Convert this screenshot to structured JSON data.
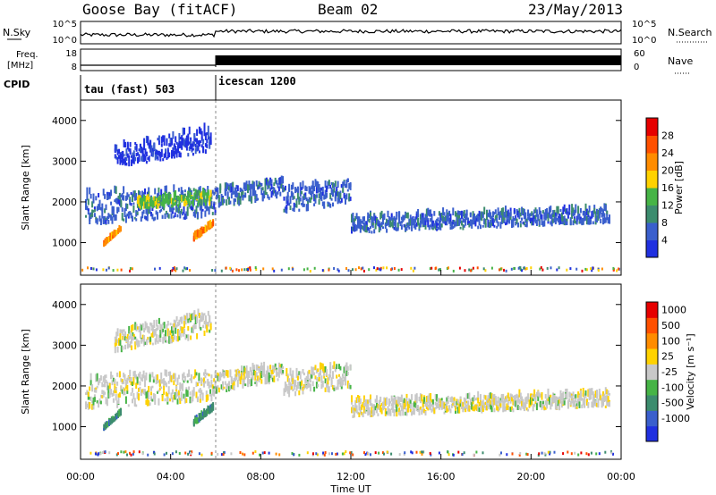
{
  "header": {
    "station": "Goose Bay (fitACF)",
    "beam": "Beam 02",
    "date": "23/May/2013"
  },
  "left_labels": {
    "nsky": "N.Sky",
    "freq_line1": "Freq.",
    "freq_line2": "[MHz]",
    "cpid": "CPID"
  },
  "right_labels": {
    "nsearch": "N.Search",
    "nave": "Nave"
  },
  "noise_axis": {
    "left_ticks": [
      "10^5",
      "10^0"
    ],
    "right_ticks": [
      "10^5",
      "10^0"
    ]
  },
  "freq_axis": {
    "left_ticks": [
      "18",
      "8"
    ],
    "right_ticks": [
      "60",
      "0"
    ]
  },
  "cpid": [
    {
      "label": "tau (fast) 503",
      "start_hour": 0,
      "end_hour": 6
    },
    {
      "label": "icescan 1200",
      "start_hour": 6,
      "end_hour": 24
    }
  ],
  "chart_data": [
    {
      "type": "heatmap",
      "panel": "power",
      "ylabel": "Slant Range [km]",
      "xlabel": "Time UT",
      "x_range_hours": [
        0,
        24
      ],
      "ylim": [
        200,
        4500
      ],
      "x_ticks": [
        "00:00",
        "04:00",
        "08:00",
        "12:00",
        "16:00",
        "20:00",
        "00:00"
      ],
      "y_ticks": [
        "1000",
        "2000",
        "3000",
        "4000"
      ],
      "colorbar": {
        "label": "Power [dB]",
        "ticks": [
          "4",
          "8",
          "12",
          "16",
          "20",
          "24",
          "28"
        ],
        "colors": [
          "#2030e0",
          "#3a5fcd",
          "#3c8c6e",
          "#46b446",
          "#ffd200",
          "#ff8c00",
          "#ff5000",
          "#e60000"
        ]
      },
      "regions": [
        {
          "t": [
            0.2,
            6.0
          ],
          "range_start": [
            1400,
            2200
          ],
          "range_end": [
            1600,
            2300
          ],
          "level": 1
        },
        {
          "t": [
            2.5,
            5.8
          ],
          "range_start": [
            1800,
            2000
          ],
          "range_end": [
            1900,
            2200
          ],
          "level": 3
        },
        {
          "t": [
            1.0,
            1.8
          ],
          "range_start": [
            900,
            900
          ],
          "range_end": [
            1300,
            1300
          ],
          "level": 5
        },
        {
          "t": [
            5.0,
            5.9
          ],
          "range_start": [
            1000,
            1100
          ],
          "range_end": [
            1400,
            1450
          ],
          "level": 5
        },
        {
          "t": [
            6.0,
            9.0
          ],
          "range_start": [
            1800,
            2300
          ],
          "range_end": [
            2100,
            2500
          ],
          "level": 1
        },
        {
          "t": [
            9.0,
            12.0
          ],
          "range_start": [
            2300,
            1700
          ],
          "range_end": [
            2500,
            1900
          ],
          "level": 1
        },
        {
          "t": [
            12.0,
            23.5
          ],
          "range_start": [
            1600,
            1200
          ],
          "range_end": [
            1800,
            1450
          ],
          "level": 1
        },
        {
          "t": [
            1.5,
            5.8
          ],
          "range_start": [
            2800,
            3300
          ],
          "range_end": [
            3200,
            3800
          ],
          "level": 0
        }
      ]
    },
    {
      "type": "heatmap",
      "panel": "velocity",
      "ylabel": "Slant Range [km]",
      "xlabel": "Time UT",
      "x_range_hours": [
        0,
        24
      ],
      "ylim": [
        200,
        4500
      ],
      "x_ticks": [
        "00:00",
        "04:00",
        "08:00",
        "12:00",
        "16:00",
        "20:00",
        "00:00"
      ],
      "y_ticks": [
        "1000",
        "2000",
        "3000",
        "4000"
      ],
      "colorbar": {
        "label": "Velocity [m s⁻¹]",
        "ticks": [
          "1000",
          "500",
          "100",
          "25",
          "-25",
          "-100",
          "-500",
          "-1000"
        ],
        "colors": [
          "#2030e0",
          "#3a5fcd",
          "#3c8c6e",
          "#46b446",
          "#c8c8c8",
          "#ffd200",
          "#ff8c00",
          "#ff5000",
          "#e60000"
        ]
      },
      "regions": [
        {
          "t": [
            0.2,
            6.0
          ],
          "range_start": [
            1400,
            2200
          ],
          "range_end": [
            1600,
            2300
          ],
          "level": 4
        },
        {
          "t": [
            6.0,
            9.0
          ],
          "range_start": [
            1800,
            2300
          ],
          "range_end": [
            2100,
            2500
          ],
          "level": 4
        },
        {
          "t": [
            9.0,
            12.0
          ],
          "range_start": [
            2300,
            1700
          ],
          "range_end": [
            2500,
            1900
          ],
          "level": 4
        },
        {
          "t": [
            12.0,
            23.5
          ],
          "range_start": [
            1600,
            1200
          ],
          "range_end": [
            1800,
            1450
          ],
          "level": 4
        },
        {
          "t": [
            1.0,
            1.8
          ],
          "range_start": [
            900,
            900
          ],
          "range_end": [
            1300,
            1300
          ],
          "level": 2
        },
        {
          "t": [
            5.0,
            5.9
          ],
          "range_start": [
            1000,
            1100
          ],
          "range_end": [
            1400,
            1450
          ],
          "level": 2
        },
        {
          "t": [
            1.5,
            5.8
          ],
          "range_start": [
            2800,
            3300
          ],
          "range_end": [
            3200,
            3800
          ],
          "level": 4
        }
      ]
    }
  ]
}
